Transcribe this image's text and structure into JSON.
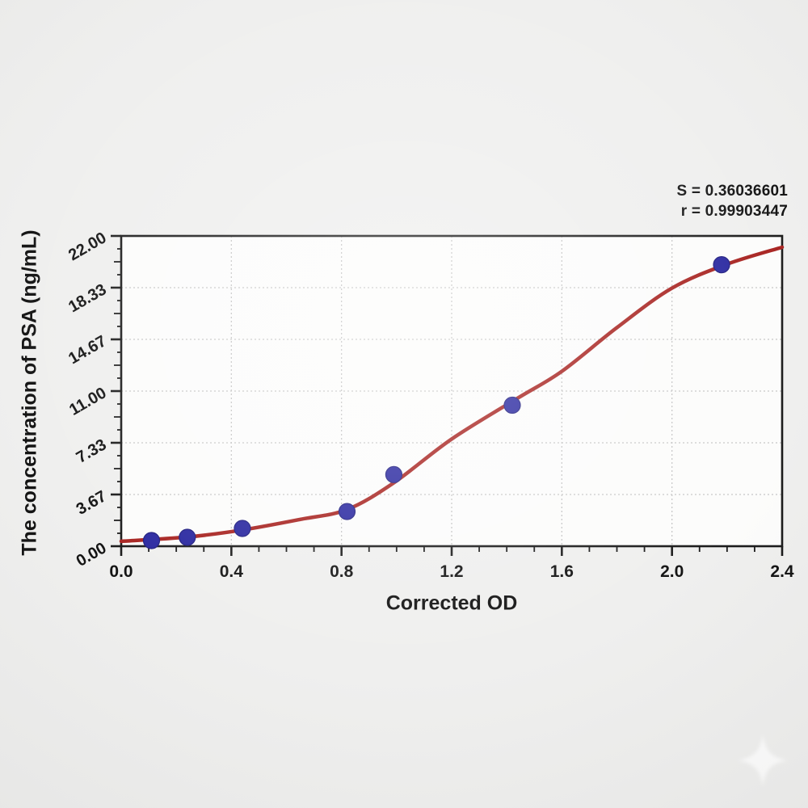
{
  "chart_data": {
    "type": "scatter",
    "title": "",
    "xlabel": "Corrected OD",
    "ylabel": "The concentration of PSA (ng/mL)",
    "xlim": [
      0,
      2.4
    ],
    "ylim": [
      0,
      22
    ],
    "x_tick_values": [
      0,
      0.4,
      0.8,
      1.2,
      1.6,
      2.0,
      2.4
    ],
    "x_tick_labels": [
      "0.0",
      "0.4",
      "0.8",
      "1.2",
      "1.6",
      "2.0",
      "2.4"
    ],
    "x_minor_step": 0.1,
    "y_tick_values": [
      0,
      3.6667,
      7.3333,
      11,
      14.6667,
      18.3333,
      22
    ],
    "y_tick_labels": [
      "0.00",
      "3.67",
      "7.33",
      "11.00",
      "14.67",
      "18.33",
      "22.00"
    ],
    "y_minor_divisions": 4,
    "grid": "dashed lines at major ticks, both axes",
    "legend": "none",
    "annotations": {
      "s_label": "S = 0.36036601",
      "r_label": "r = 0.99903447"
    },
    "series": [
      {
        "name": "standard-points",
        "type": "scatter",
        "color": "#2a28a0",
        "points": [
          [
            0.11,
            0.4
          ],
          [
            0.24,
            0.63
          ],
          [
            0.44,
            1.26
          ],
          [
            0.82,
            2.46
          ],
          [
            0.99,
            5.08
          ],
          [
            1.42,
            10.0
          ],
          [
            2.18,
            19.96
          ]
        ]
      },
      {
        "name": "fitted-curve",
        "type": "line",
        "color": "#a82421",
        "points": [
          [
            0,
            0.35
          ],
          [
            0.24,
            0.65
          ],
          [
            0.44,
            1.15
          ],
          [
            0.65,
            1.9
          ],
          [
            0.82,
            2.6
          ],
          [
            0.99,
            4.5
          ],
          [
            1.2,
            7.6
          ],
          [
            1.44,
            10.5
          ],
          [
            1.6,
            12.4
          ],
          [
            1.8,
            15.5
          ],
          [
            2.0,
            18.3
          ],
          [
            2.2,
            20.0
          ],
          [
            2.4,
            21.2
          ]
        ]
      }
    ],
    "colors": {
      "axis": "#1b1b1b",
      "grid": "#c6c6c6",
      "plot_bg": "#fcfcfb",
      "page_bg": "#efefee",
      "marker": "#2a28a0",
      "marker_edge": "#1e1c7e",
      "curve": "#a82421",
      "text": "#141414"
    }
  },
  "watermark": {
    "icon": "sparkle",
    "color": "#ffffff"
  }
}
